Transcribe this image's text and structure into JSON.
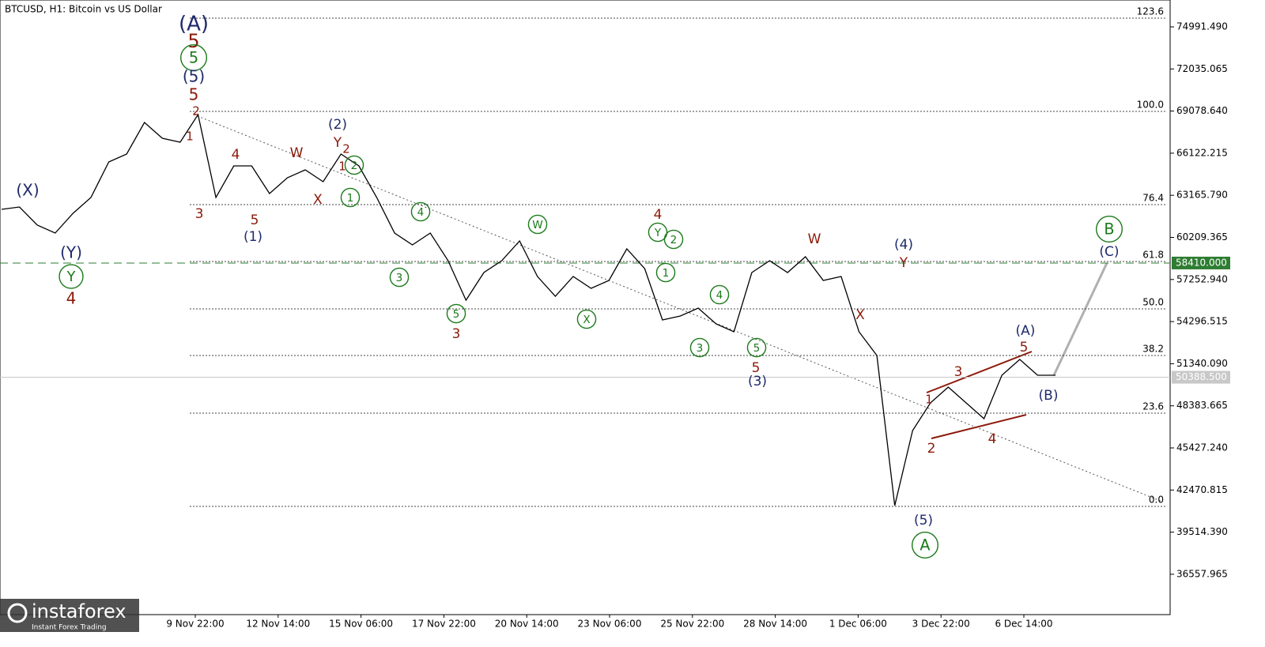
{
  "chart_data": {
    "type": "line",
    "title": "BTCUSD, H1:  Bitcoin vs US Dollar",
    "color": "#000000",
    "values": [
      62178,
      62345,
      61069,
      60514,
      61901,
      63010,
      65506,
      66061,
      68279,
      67170,
      66893,
      68834,
      63010,
      65229,
      65229,
      63287,
      64397,
      64951,
      64119,
      66061,
      65229,
      63010,
      60514,
      59682,
      60514,
      58573,
      55799,
      57741,
      58573,
      59959,
      57463,
      56077,
      57463,
      56631,
      57186,
      59405,
      58018,
      54413,
      54690,
      55245,
      54135,
      53581,
      57741,
      58573,
      57741,
      58850,
      57186,
      57463,
      53581,
      51917,
      41378,
      46647,
      48589,
      49698,
      48589,
      47479,
      50530,
      51639,
      50530,
      50530
    ],
    "ylim": [
      33724,
      76877
    ],
    "yticks": [
      {
        "value": 74991.49,
        "label": "74991.490"
      },
      {
        "value": 72035.065,
        "label": "72035.065"
      },
      {
        "value": 69078.64,
        "label": "69078.640"
      },
      {
        "value": 66122.215,
        "label": "66122.215"
      },
      {
        "value": 63165.79,
        "label": "63165.790"
      },
      {
        "value": 60209.365,
        "label": "60209.365"
      },
      {
        "value": 57252.94,
        "label": "57252.940"
      },
      {
        "value": 54296.515,
        "label": "54296.515"
      },
      {
        "value": 51340.09,
        "label": "51340.090"
      },
      {
        "value": 48383.665,
        "label": "48383.665"
      },
      {
        "value": 45427.24,
        "label": "45427.240"
      },
      {
        "value": 42470.815,
        "label": "42470.815"
      },
      {
        "value": 39514.39,
        "label": "39514.390"
      },
      {
        "value": 36557.965,
        "label": "36557.965"
      }
    ],
    "time_labels": [
      "9 Nov 22:00",
      "12 Nov 14:00",
      "15 Nov 06:00",
      "17 Nov 22:00",
      "20 Nov 14:00",
      "23 Nov 06:00",
      "25 Nov 22:00",
      "28 Nov 14:00",
      "1 Dec 06:00",
      "3 Dec 22:00",
      "6 Dec 14:00"
    ],
    "fib_levels": [
      {
        "label": "123.6",
        "value": 75601
      },
      {
        "label": "100.0",
        "value": 69056
      },
      {
        "label": "76.4",
        "value": 62511
      },
      {
        "label": "61.8",
        "value": 58517
      },
      {
        "label": "50.0",
        "value": 55189
      },
      {
        "label": "38.2",
        "value": 51917
      },
      {
        "label": "23.6",
        "value": 47868
      },
      {
        "label": "0.0",
        "value": 41323
      }
    ],
    "price_labels": [
      {
        "value": 58410,
        "label": "58410.000",
        "color": "#2e7d32"
      },
      {
        "value": 50388.5,
        "label": "50388.500",
        "color": "#c8c8c8"
      }
    ],
    "annotations": [
      {
        "text": "(A)",
        "color": "#1f2a6b"
      },
      {
        "text": "5",
        "color": "#8b1a0a"
      },
      {
        "text": "5",
        "color": "#1a7a1a",
        "circled": true
      },
      {
        "text": "(5)",
        "color": "#1f2a6b"
      },
      {
        "text": "5",
        "color": "#8b1a0a"
      },
      {
        "text": "2",
        "color": "#8b1a0a"
      },
      {
        "text": "1",
        "color": "#8b1a0a"
      },
      {
        "text": "3",
        "color": "#8b1a0a"
      },
      {
        "text": "4",
        "color": "#8b1a0a"
      },
      {
        "text": "5",
        "color": "#8b1a0a"
      },
      {
        "text": "(1)",
        "color": "#1f2a6b"
      },
      {
        "text": "W",
        "color": "#8b1a0a"
      },
      {
        "text": "X",
        "color": "#8b1a0a"
      },
      {
        "text": "(2)",
        "color": "#1f2a6b"
      },
      {
        "text": "Y",
        "color": "#8b1a0a"
      },
      {
        "text": "2",
        "color": "#8b1a0a"
      },
      {
        "text": "1",
        "color": "#8b1a0a"
      },
      {
        "text": "2",
        "color": "#1a7a1a",
        "circled": true
      },
      {
        "text": "1",
        "color": "#1a7a1a",
        "circled": true
      },
      {
        "text": "4",
        "color": "#1a7a1a",
        "circled": true
      },
      {
        "text": "3",
        "color": "#1a7a1a",
        "circled": true
      },
      {
        "text": "5",
        "color": "#1a7a1a",
        "circled": true
      },
      {
        "text": "3",
        "color": "#8b1a0a"
      },
      {
        "text": "W",
        "color": "#1a7a1a",
        "circled": true
      },
      {
        "text": "X",
        "color": "#1a7a1a",
        "circled": true
      },
      {
        "text": "4",
        "color": "#8b1a0a"
      },
      {
        "text": "Y",
        "color": "#1a7a1a",
        "circled": true
      },
      {
        "text": "2",
        "color": "#1a7a1a",
        "circled": true
      },
      {
        "text": "1",
        "color": "#1a7a1a",
        "circled": true
      },
      {
        "text": "4",
        "color": "#1a7a1a",
        "circled": true
      },
      {
        "text": "3",
        "color": "#1a7a1a",
        "circled": true
      },
      {
        "text": "5",
        "color": "#1a7a1a",
        "circled": true
      },
      {
        "text": "5",
        "color": "#8b1a0a"
      },
      {
        "text": "(3)",
        "color": "#1f2a6b"
      },
      {
        "text": "W",
        "color": "#8b1a0a"
      },
      {
        "text": "X",
        "color": "#8b1a0a"
      },
      {
        "text": "(4)",
        "color": "#1f2a6b"
      },
      {
        "text": "Y",
        "color": "#8b1a0a"
      },
      {
        "text": "1",
        "color": "#8b1a0a"
      },
      {
        "text": "2",
        "color": "#8b1a0a"
      },
      {
        "text": "3",
        "color": "#8b1a0a"
      },
      {
        "text": "4",
        "color": "#8b1a0a"
      },
      {
        "text": "5",
        "color": "#8b1a0a"
      },
      {
        "text": "(A)",
        "color": "#1f2a6b"
      },
      {
        "text": "(B)",
        "color": "#1f2a6b"
      },
      {
        "text": "(5)",
        "color": "#1f2a6b"
      },
      {
        "text": "A",
        "color": "#1a7a1a",
        "circled": true
      },
      {
        "text": "B",
        "color": "#1a7a1a",
        "circled": true
      },
      {
        "text": "(C)",
        "color": "#1f2a6b"
      },
      {
        "text": "(X)",
        "color": "#1f2a6b"
      },
      {
        "text": "(Y)",
        "color": "#1f2a6b"
      },
      {
        "text": "Y",
        "color": "#1a7a1a",
        "circled": true
      },
      {
        "text": "4",
        "color": "#8b1a0a"
      }
    ],
    "watermark": {
      "brand": "instaforex",
      "tagline": "Instant Forex Trading"
    }
  }
}
